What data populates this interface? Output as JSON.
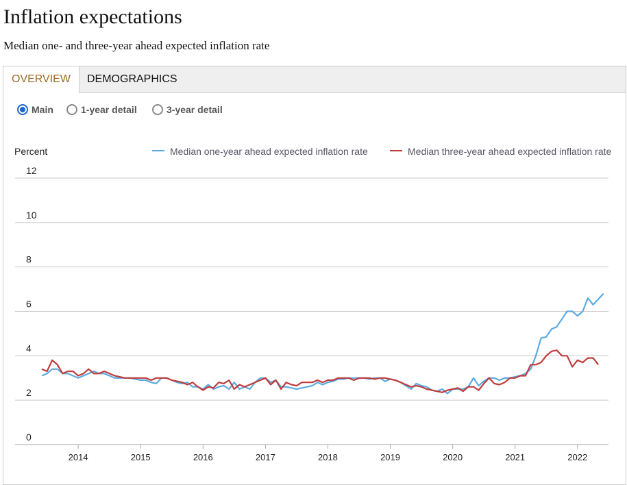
{
  "title": "Inflation expectations",
  "subtitle": "Median one- and three-year ahead expected inflation rate",
  "tabs": [
    {
      "label": "OVERVIEW",
      "active": true
    },
    {
      "label": "DEMOGRAPHICS",
      "active": false
    }
  ],
  "radios": [
    {
      "label": "Main",
      "checked": true
    },
    {
      "label": "1-year detail",
      "checked": false
    },
    {
      "label": "3-year detail",
      "checked": false
    }
  ],
  "chart_data": {
    "type": "line",
    "ylabel": "Percent",
    "ylim": [
      0,
      12
    ],
    "yticks": [
      "0",
      "2",
      "4",
      "6",
      "8",
      "10",
      "12"
    ],
    "xticks": [
      "2014",
      "2015",
      "2016",
      "2017",
      "2018",
      "2019",
      "2020",
      "2021",
      "2022"
    ],
    "x_start": "2013-06",
    "x_end": "2022-06",
    "frequency": "monthly",
    "grid": true,
    "legend": "top-right",
    "series": [
      {
        "name": "Median one-year ahead expected inflation rate",
        "color": "#5aaae0",
        "values": [
          3.1,
          3.2,
          3.4,
          3.4,
          3.2,
          3.2,
          3.1,
          3.0,
          3.1,
          3.2,
          3.3,
          3.2,
          3.2,
          3.1,
          3.0,
          3.0,
          3.0,
          3.0,
          2.95,
          2.9,
          2.9,
          2.8,
          2.75,
          3.0,
          3.0,
          2.9,
          2.8,
          2.75,
          2.8,
          2.6,
          2.6,
          2.5,
          2.7,
          2.5,
          2.6,
          2.65,
          2.5,
          2.8,
          2.5,
          2.6,
          2.5,
          2.8,
          3.0,
          3.0,
          2.8,
          2.9,
          2.6,
          2.6,
          2.55,
          2.5,
          2.55,
          2.6,
          2.65,
          2.8,
          2.7,
          2.8,
          2.85,
          2.95,
          2.95,
          3.0,
          3.0,
          3.0,
          3.0,
          2.95,
          3.0,
          3.0,
          2.85,
          2.95,
          2.9,
          2.8,
          2.65,
          2.5,
          2.75,
          2.65,
          2.6,
          2.45,
          2.4,
          2.5,
          2.3,
          2.5,
          2.5,
          2.5,
          2.6,
          3.0,
          2.65,
          2.85,
          3.0,
          3.0,
          2.9,
          3.0,
          3.0,
          3.05,
          3.1,
          3.2,
          3.4,
          4.0,
          4.8,
          4.85,
          5.2,
          5.3,
          5.65,
          6.0,
          6.0,
          5.8,
          6.0,
          6.6,
          6.3,
          6.55,
          6.8
        ]
      },
      {
        "name": "Median three-year ahead expected inflation rate",
        "color": "#bf3b3b",
        "values": [
          3.4,
          3.3,
          3.8,
          3.6,
          3.2,
          3.3,
          3.3,
          3.1,
          3.2,
          3.4,
          3.2,
          3.2,
          3.3,
          3.2,
          3.1,
          3.05,
          3.0,
          3.0,
          3.0,
          3.0,
          3.0,
          2.9,
          3.0,
          3.0,
          3.0,
          2.9,
          2.85,
          2.8,
          2.7,
          2.8,
          2.6,
          2.45,
          2.6,
          2.55,
          2.8,
          2.75,
          2.9,
          2.5,
          2.7,
          2.6,
          2.7,
          2.8,
          2.9,
          3.0,
          2.7,
          2.9,
          2.5,
          2.8,
          2.7,
          2.65,
          2.8,
          2.8,
          2.8,
          2.9,
          2.8,
          2.9,
          2.9,
          3.0,
          3.0,
          3.0,
          2.9,
          3.0,
          3.0,
          3.0,
          2.95,
          3.0,
          3.0,
          2.95,
          2.9,
          2.8,
          2.7,
          2.6,
          2.65,
          2.6,
          2.5,
          2.45,
          2.4,
          2.35,
          2.45,
          2.5,
          2.55,
          2.4,
          2.6,
          2.6,
          2.45,
          2.75,
          3.0,
          2.75,
          2.7,
          2.8,
          3.0,
          3.0,
          3.1,
          3.1,
          3.6,
          3.6,
          3.7,
          4.0,
          4.2,
          4.25,
          4.0,
          4.0,
          3.5,
          3.8,
          3.7,
          3.9,
          3.9,
          3.6
        ]
      }
    ]
  }
}
